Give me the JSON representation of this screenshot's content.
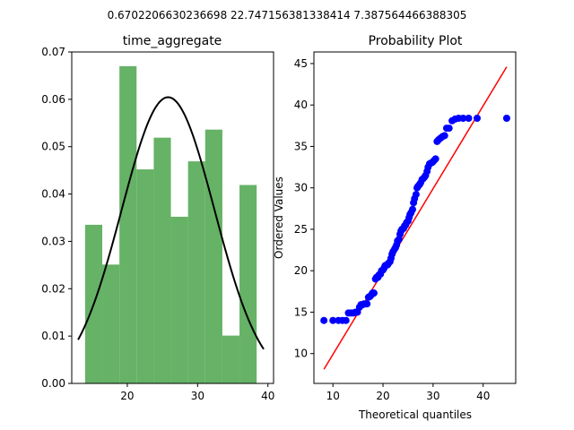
{
  "suptitle": "0.6702206630236698 22.747156381338414 7.387564466388305",
  "chart_data": [
    {
      "type": "bar",
      "title": "time_aggregate",
      "xlabel": "",
      "ylabel": "",
      "xlim": [
        12.1,
        40.8
      ],
      "ylim": [
        0,
        0.07
      ],
      "xticks": [
        20,
        30,
        40
      ],
      "yticks": [
        0.0,
        0.01,
        0.02,
        0.03,
        0.04,
        0.05,
        0.06,
        0.07
      ],
      "ytick_labels": [
        "0.00",
        "0.01",
        "0.02",
        "0.03",
        "0.04",
        "0.05",
        "0.06",
        "0.07"
      ],
      "bin_edges": [
        14.0,
        16.44,
        18.88,
        21.32,
        23.76,
        26.2,
        28.64,
        31.08,
        33.52,
        35.96,
        38.4
      ],
      "values": [
        0.0335,
        0.0251,
        0.067,
        0.0452,
        0.0519,
        0.0352,
        0.0469,
        0.0536,
        0.0101,
        0.0419
      ],
      "bar_color": "#66b266",
      "pdf_mean": 25.8,
      "pdf_std": 6.6,
      "pdf_range": [
        13.0,
        39.4
      ],
      "pdf_color": "#000000"
    },
    {
      "type": "scatter",
      "title": "Probability Plot",
      "xlabel": "Theoretical quantiles",
      "ylabel": "Ordered Values",
      "xlim": [
        6.2,
        46.5
      ],
      "ylim": [
        6.4,
        46.4
      ],
      "xticks": [
        10,
        20,
        30,
        40
      ],
      "yticks": [
        10,
        15,
        20,
        25,
        30,
        35,
        40,
        45
      ],
      "points": [
        [
          8.2,
          14.0
        ],
        [
          10.0,
          14.0
        ],
        [
          11.1,
          14.0
        ],
        [
          11.9,
          14.0
        ],
        [
          12.6,
          14.0
        ],
        [
          13.1,
          14.9
        ],
        [
          13.6,
          14.9
        ],
        [
          14.1,
          14.9
        ],
        [
          14.5,
          15.0
        ],
        [
          14.9,
          15.0
        ],
        [
          15.3,
          15.6
        ],
        [
          15.6,
          15.9
        ],
        [
          15.9,
          15.9
        ],
        [
          16.2,
          16.0
        ],
        [
          16.5,
          16.0
        ],
        [
          16.8,
          16.0
        ],
        [
          17.1,
          16.8
        ],
        [
          17.4,
          16.9
        ],
        [
          17.7,
          17.1
        ],
        [
          17.9,
          17.3
        ],
        [
          18.2,
          17.3
        ],
        [
          18.5,
          19.0
        ],
        [
          18.7,
          19.2
        ],
        [
          19.0,
          19.2
        ],
        [
          19.2,
          19.5
        ],
        [
          19.5,
          19.6
        ],
        [
          19.7,
          20.0
        ],
        [
          20.0,
          20.1
        ],
        [
          20.2,
          20.3
        ],
        [
          20.4,
          20.6
        ],
        [
          20.7,
          20.7
        ],
        [
          20.9,
          20.7
        ],
        [
          21.1,
          20.9
        ],
        [
          21.4,
          21.1
        ],
        [
          21.6,
          21.5
        ],
        [
          21.8,
          22.0
        ],
        [
          22.0,
          22.3
        ],
        [
          22.3,
          22.6
        ],
        [
          22.5,
          22.8
        ],
        [
          22.7,
          23.1
        ],
        [
          22.9,
          23.6
        ],
        [
          23.2,
          23.8
        ],
        [
          23.4,
          24.4
        ],
        [
          23.6,
          24.8
        ],
        [
          23.8,
          25.0
        ],
        [
          24.1,
          25.1
        ],
        [
          24.3,
          25.4
        ],
        [
          24.5,
          25.5
        ],
        [
          24.7,
          25.8
        ],
        [
          25.0,
          26.0
        ],
        [
          25.2,
          26.4
        ],
        [
          25.4,
          26.8
        ],
        [
          25.6,
          27.0
        ],
        [
          25.9,
          27.4
        ],
        [
          26.1,
          28.2
        ],
        [
          26.3,
          28.7
        ],
        [
          26.6,
          29.2
        ],
        [
          26.8,
          30.0
        ],
        [
          27.0,
          30.2
        ],
        [
          27.3,
          30.4
        ],
        [
          27.5,
          30.6
        ],
        [
          27.8,
          31.0
        ],
        [
          28.0,
          31.1
        ],
        [
          28.3,
          31.3
        ],
        [
          28.5,
          31.5
        ],
        [
          28.8,
          32.0
        ],
        [
          29.0,
          32.5
        ],
        [
          29.3,
          32.9
        ],
        [
          29.6,
          33.0
        ],
        [
          29.9,
          33.1
        ],
        [
          30.2,
          33.3
        ],
        [
          30.5,
          33.5
        ],
        [
          30.8,
          35.6
        ],
        [
          31.1,
          35.8
        ],
        [
          31.5,
          36.0
        ],
        [
          31.9,
          36.2
        ],
        [
          32.3,
          36.3
        ],
        [
          32.7,
          37.2
        ],
        [
          33.2,
          37.2
        ],
        [
          33.8,
          38.1
        ],
        [
          34.4,
          38.3
        ],
        [
          35.1,
          38.4
        ],
        [
          36.0,
          38.4
        ],
        [
          37.1,
          38.4
        ],
        [
          38.8,
          38.4
        ],
        [
          44.7,
          38.4
        ]
      ],
      "point_color": "#0000ff",
      "fit_line": [
        [
          8.2,
          8.1
        ],
        [
          44.7,
          44.6
        ]
      ],
      "line_color": "#ff0000"
    }
  ]
}
